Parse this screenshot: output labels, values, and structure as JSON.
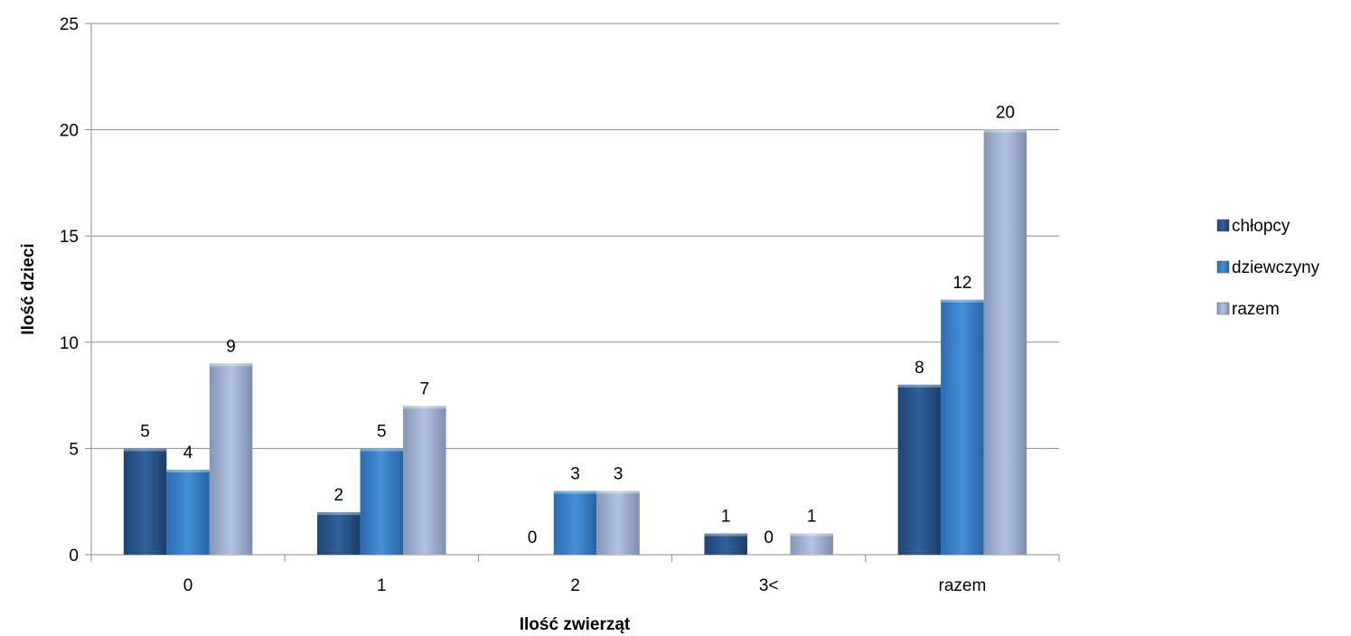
{
  "chart_data": {
    "type": "bar",
    "title": "",
    "xlabel": "Ilość zwierząt",
    "ylabel": "Ilość dzieci",
    "categories": [
      "0",
      "1",
      "2",
      "3<",
      "razem"
    ],
    "series": [
      {
        "name": "chłopcy",
        "values": [
          5,
          2,
          0,
          1,
          8
        ],
        "color": "#2e5c94"
      },
      {
        "name": "dziewczyny",
        "values": [
          4,
          5,
          3,
          0,
          12
        ],
        "color": "#3b82c9"
      },
      {
        "name": "razem",
        "values": [
          9,
          7,
          3,
          1,
          20
        ],
        "color": "#a6b7d8"
      }
    ],
    "ylim": [
      0,
      25
    ],
    "yticks": [
      0,
      5,
      10,
      15,
      20,
      25
    ],
    "grid": true,
    "legend_position": "right",
    "data_labels": true
  }
}
